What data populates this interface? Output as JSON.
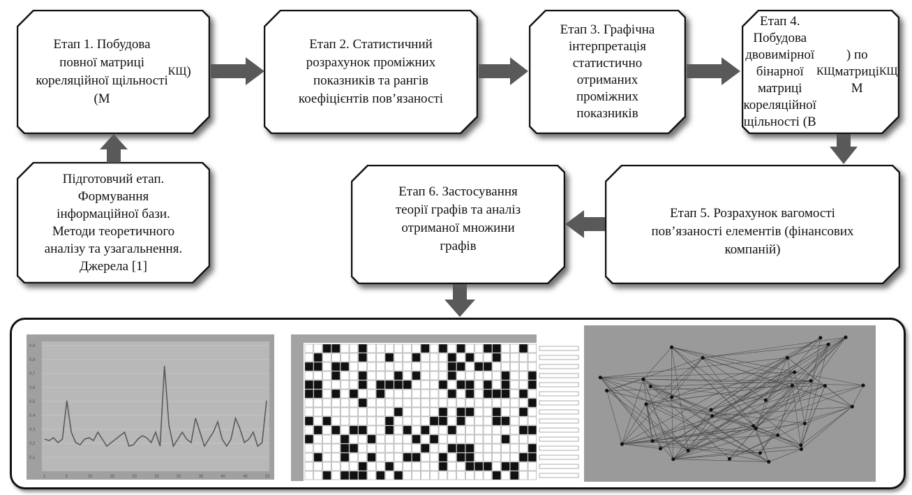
{
  "stages": [
    {
      "id": "stage-1",
      "lines": [
        "Етап 1. Побудова",
        "повної матриці",
        "кореляційної щільності",
        "(M<sub>КЩ</sub>)"
      ]
    },
    {
      "id": "stage-2",
      "lines": [
        "Етап 2. Статистичний",
        "розрахунок проміжних",
        "показників та рангів",
        "коефіцієнтів пов’язаності"
      ]
    },
    {
      "id": "stage-3",
      "lines": [
        "Етап 3. Графічна",
        "інтерпретація",
        "статистично",
        "отриманих",
        "проміжних",
        "показників"
      ]
    },
    {
      "id": "stage-4",
      "lines": [
        "Етап 4. Побудова",
        "двовимірної",
        "бінарної матриці",
        "кореляційної",
        "щільності (B<sub>КЩ</sub>) по",
        "матриці M<sub>КЩ</sub>"
      ]
    },
    {
      "id": "stage-5",
      "lines": [
        "Етап 5. Розрахунок вагомості",
        "пов’язаності елементів (фінансових",
        "компаній)"
      ]
    },
    {
      "id": "stage-6",
      "lines": [
        "Етап 6. Застосування",
        "теорії графів та аналіз",
        "отриманої множини",
        "графів"
      ]
    },
    {
      "id": "prep-stage",
      "lines": [
        "Підготовчий етап.",
        "Формування",
        "інформаційної бази.",
        "Методи теоретичного",
        "аналізу та узагальнення.",
        "Джерела [1]"
      ]
    }
  ],
  "line_chart": {
    "y_ticks": [
      "0,1",
      "0,2",
      "0,3",
      "0,4",
      "0,5",
      "0,6",
      "0,7",
      "0,8",
      "0,9"
    ],
    "x_ticks": [
      "1",
      "5",
      "10",
      "15",
      "20",
      "25",
      "30",
      "35",
      "40",
      "45",
      "50"
    ]
  },
  "colors": {
    "arrow": "#595959",
    "line": "#5a5a5a",
    "grid_bg": "#a3a3a3",
    "graph_bg": "#9a9a9a",
    "border": "#111111"
  }
}
